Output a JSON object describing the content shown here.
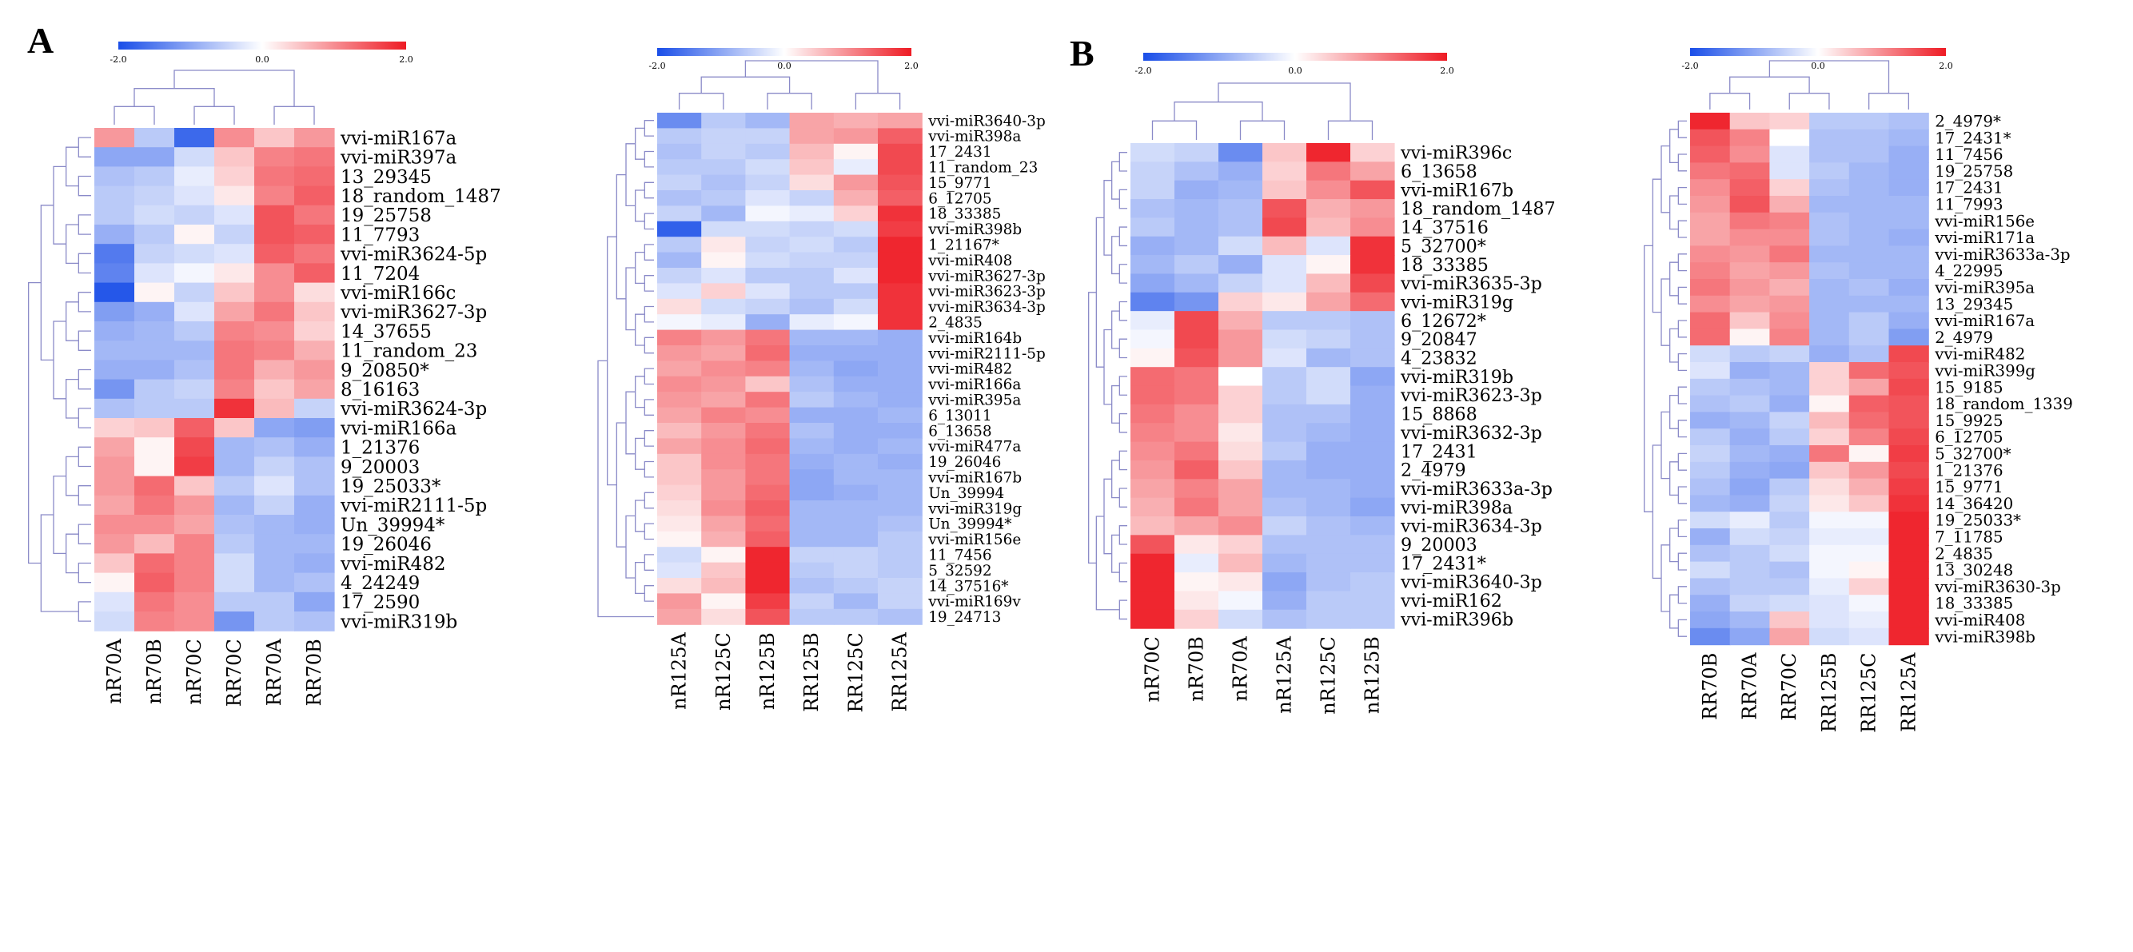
{
  "panels": [
    {
      "label": "A"
    },
    {
      "label": "B"
    }
  ],
  "chart_data": [
    {
      "type": "heatmap",
      "panel": "A",
      "title": "",
      "legend": {
        "min": "-2.0",
        "mid": "0.0",
        "max": "2.0",
        "low_color": "#1a4ee8",
        "mid_color": "#ffffff",
        "high_color": "#ee1b24"
      },
      "columns": [
        "nR70A",
        "nR70B",
        "nR70C",
        "RR70C",
        "RR70A",
        "RR70B"
      ],
      "rows": [
        "vvi-miR167a",
        "vvi-miR397a",
        "13_29345",
        "18_random_1487",
        "19_25758",
        "11_7793",
        "vvi-miR3624-5p",
        "11_7204",
        "vvi-miR166c",
        "vvi-miR3627-3p",
        "14_37655",
        "11_random_23",
        "9_20850*",
        "8_16163",
        "vvi-miR3624-3p",
        "vvi-miR166a",
        "1_21376",
        "9_20003",
        "19_25033*",
        "vvi-miR2111-5p",
        "Un_39994*",
        "19_26046",
        "vvi-miR482",
        "4_24249",
        "17_2590",
        "vvi-miR319b"
      ],
      "values": [
        [
          0.9,
          -0.6,
          -1.7,
          1.0,
          0.5,
          0.9
        ],
        [
          -1.0,
          -1.0,
          -0.4,
          0.5,
          1.1,
          1.2
        ],
        [
          -0.7,
          -0.6,
          -0.2,
          0.4,
          1.2,
          1.3
        ],
        [
          -0.6,
          -0.5,
          -0.3,
          0.2,
          1.1,
          1.4
        ],
        [
          -0.6,
          -0.4,
          -0.5,
          -0.3,
          1.5,
          1.2
        ],
        [
          -0.9,
          -0.6,
          0.1,
          -0.5,
          1.5,
          1.4
        ],
        [
          -1.5,
          -0.5,
          -0.4,
          -0.3,
          1.4,
          1.2
        ],
        [
          -1.4,
          -0.3,
          -0.1,
          0.2,
          1.0,
          1.4
        ],
        [
          -1.9,
          0.1,
          -0.5,
          0.5,
          1.0,
          0.3
        ],
        [
          -1.1,
          -0.9,
          -0.3,
          0.8,
          1.2,
          0.5
        ],
        [
          -0.9,
          -0.8,
          -0.6,
          1.1,
          1.0,
          0.4
        ],
        [
          -0.8,
          -0.8,
          -0.8,
          1.2,
          1.1,
          0.7
        ],
        [
          -0.9,
          -0.9,
          -0.7,
          1.2,
          0.7,
          0.9
        ],
        [
          -1.2,
          -0.6,
          -0.5,
          1.1,
          0.5,
          0.8
        ],
        [
          -0.7,
          -0.6,
          -0.6,
          1.8,
          0.6,
          -0.5
        ],
        [
          0.4,
          0.5,
          1.4,
          0.5,
          -1.0,
          -1.1
        ],
        [
          0.8,
          0.1,
          1.6,
          -0.8,
          -0.7,
          -0.9
        ],
        [
          0.9,
          0.1,
          1.7,
          -0.8,
          -0.5,
          -0.7
        ],
        [
          0.9,
          1.3,
          0.5,
          -0.6,
          -0.3,
          -0.7
        ],
        [
          0.8,
          1.2,
          0.9,
          -0.8,
          -0.5,
          -0.9
        ],
        [
          1.0,
          1.0,
          0.8,
          -0.7,
          -0.8,
          -0.9
        ],
        [
          0.9,
          0.6,
          1.1,
          -0.6,
          -0.8,
          -0.8
        ],
        [
          0.5,
          1.3,
          1.1,
          -0.4,
          -0.8,
          -0.9
        ],
        [
          0.1,
          1.4,
          1.1,
          -0.4,
          -0.8,
          -0.7
        ],
        [
          -0.3,
          1.2,
          1.0,
          -0.6,
          -0.6,
          -1.0
        ],
        [
          -0.4,
          1.1,
          1.0,
          -1.2,
          -0.6,
          -0.7
        ]
      ]
    },
    {
      "type": "heatmap",
      "panel": "A",
      "title": "",
      "legend": {
        "min": "-2.0",
        "mid": "0.0",
        "max": "2.0",
        "low_color": "#1a4ee8",
        "mid_color": "#ffffff",
        "high_color": "#ee1b24"
      },
      "columns": [
        "nR125A",
        "nR125C",
        "nR125B",
        "RR125B",
        "RR125C",
        "RR125A"
      ],
      "rows": [
        "vvi-miR3640-3p",
        "vvi-miR398a",
        "17_2431",
        "11_random_23",
        "15_9771",
        "6_12705",
        "18_33385",
        "vvi-miR398b",
        "1_21167*",
        "vvi-miR408",
        "vvi-miR3627-3p",
        "vvi-miR3623-3p",
        "vvi-miR3634-3p",
        "2_4835",
        "vvi-miR164b",
        "vvi-miR2111-5p",
        "vvi-miR482",
        "vvi-miR166a",
        "vvi-miR395a",
        "6_13011",
        "6_13658",
        "vvi-miR477a",
        "19_26046",
        "vvi-miR167b",
        "Un_39994",
        "vvi-miR319g",
        "Un_39994*",
        "vvi-miR156e",
        "11_7456",
        "5_32592",
        "14_37516*",
        "vvi-miR169v",
        "19_24713"
      ],
      "values": [
        [
          -1.3,
          -0.6,
          -0.8,
          0.8,
          0.7,
          0.8
        ],
        [
          -0.6,
          -0.5,
          -0.5,
          0.8,
          0.9,
          1.4
        ],
        [
          -0.7,
          -0.5,
          -0.6,
          0.6,
          0.1,
          1.6
        ],
        [
          -0.6,
          -0.6,
          -0.4,
          0.5,
          -0.2,
          1.6
        ],
        [
          -0.5,
          -0.7,
          -0.5,
          0.3,
          0.9,
          1.5
        ],
        [
          -0.7,
          -0.6,
          -0.3,
          -0.5,
          0.7,
          1.4
        ],
        [
          -0.5,
          -0.8,
          -0.1,
          -0.2,
          0.4,
          1.8
        ],
        [
          -1.8,
          -0.4,
          -0.4,
          -0.5,
          -0.4,
          1.7
        ],
        [
          -0.6,
          0.2,
          -0.5,
          -0.4,
          -0.6,
          1.9
        ],
        [
          -0.8,
          0.1,
          -0.4,
          -0.5,
          -0.5,
          1.9
        ],
        [
          -0.5,
          -0.3,
          -0.6,
          -0.6,
          -0.3,
          1.9
        ],
        [
          -0.3,
          0.4,
          -0.3,
          -0.6,
          -0.6,
          1.8
        ],
        [
          0.3,
          -0.4,
          -0.5,
          -0.7,
          -0.4,
          1.8
        ],
        [
          -0.1,
          -0.2,
          -0.9,
          -0.2,
          -0.1,
          1.8
        ],
        [
          1.1,
          0.9,
          1.2,
          -0.8,
          -0.8,
          -0.9
        ],
        [
          0.9,
          0.8,
          1.3,
          -0.9,
          -0.9,
          -0.9
        ],
        [
          0.8,
          1.0,
          1.1,
          -0.8,
          -1.0,
          -0.9
        ],
        [
          1.0,
          0.9,
          0.5,
          -0.7,
          -0.9,
          -0.9
        ],
        [
          0.9,
          0.8,
          1.2,
          -0.6,
          -0.8,
          -0.9
        ],
        [
          0.8,
          1.1,
          1.0,
          -0.9,
          -0.9,
          -0.8
        ],
        [
          0.6,
          0.9,
          1.2,
          -0.7,
          -0.9,
          -0.9
        ],
        [
          0.8,
          1.0,
          1.3,
          -0.8,
          -0.9,
          -0.8
        ],
        [
          0.5,
          1.0,
          1.2,
          -0.9,
          -0.8,
          -0.9
        ],
        [
          0.5,
          0.9,
          1.2,
          -1.0,
          -0.8,
          -0.8
        ],
        [
          0.4,
          0.9,
          1.3,
          -1.0,
          -0.9,
          -0.8
        ],
        [
          0.3,
          1.0,
          1.4,
          -0.8,
          -0.8,
          -0.8
        ],
        [
          0.2,
          0.8,
          1.3,
          -0.8,
          -0.8,
          -0.7
        ],
        [
          0.1,
          0.7,
          1.4,
          -0.8,
          -0.8,
          -0.6
        ],
        [
          -0.4,
          0.1,
          1.9,
          -0.5,
          -0.5,
          -0.6
        ],
        [
          -0.3,
          0.5,
          1.9,
          -0.6,
          -0.5,
          -0.6
        ],
        [
          0.3,
          0.6,
          1.9,
          -0.7,
          -0.6,
          -0.5
        ],
        [
          0.9,
          0.1,
          1.7,
          -0.5,
          -0.8,
          -0.5
        ],
        [
          0.8,
          0.3,
          1.5,
          -0.6,
          -0.6,
          -0.7
        ]
      ]
    },
    {
      "type": "heatmap",
      "panel": "B",
      "title": "",
      "legend": {
        "min": "-2.0",
        "mid": "0.0",
        "max": "2.0",
        "low_color": "#1a4ee8",
        "mid_color": "#ffffff",
        "high_color": "#ee1b24"
      },
      "columns": [
        "nR70C",
        "nR70B",
        "nR70A",
        "nR125A",
        "nR125C",
        "nR125B"
      ],
      "rows": [
        "vvi-miR396c",
        "6_13658",
        "vvi-miR167b",
        "18_random_1487",
        "14_37516",
        "5_32700*",
        "18_33385",
        "vvi-miR3635-3p",
        "vvi-miR319g",
        "6_12672*",
        "9_20847",
        "4_23832",
        "vvi-miR319b",
        "vvi-miR3623-3p",
        "15_8868",
        "vvi-miR3632-3p",
        "17_2431",
        "2_4979",
        "vvi-miR3633a-3p",
        "vvi-miR398a",
        "vvi-miR3634-3p",
        "9_20003",
        "17_2431*",
        "vvi-miR3640-3p",
        "vvi-miR162",
        "vvi-miR396b"
      ],
      "values": [
        [
          -0.4,
          -0.5,
          -1.3,
          0.5,
          1.9,
          0.4
        ],
        [
          -0.5,
          -0.7,
          -0.9,
          0.4,
          1.2,
          0.8
        ],
        [
          -0.5,
          -0.9,
          -0.8,
          0.5,
          1.0,
          1.5
        ],
        [
          -0.7,
          -0.8,
          -0.7,
          1.5,
          0.7,
          0.9
        ],
        [
          -0.6,
          -0.8,
          -0.7,
          1.6,
          0.6,
          1.0
        ],
        [
          -0.9,
          -0.8,
          -0.4,
          0.6,
          -0.3,
          1.8
        ],
        [
          -0.8,
          -0.6,
          -0.9,
          -0.3,
          0.1,
          1.8
        ],
        [
          -1.0,
          -0.8,
          -0.5,
          -0.3,
          0.6,
          1.6
        ],
        [
          -1.4,
          -1.2,
          0.4,
          0.2,
          0.8,
          1.3
        ],
        [
          -0.2,
          1.6,
          0.7,
          -0.6,
          -0.6,
          -0.7
        ],
        [
          -0.1,
          1.6,
          0.9,
          -0.4,
          -0.5,
          -0.7
        ],
        [
          0.1,
          1.5,
          0.9,
          -0.3,
          -0.8,
          -0.7
        ],
        [
          1.3,
          1.2,
          0.0,
          -0.6,
          -0.4,
          -1.0
        ],
        [
          1.3,
          1.2,
          0.4,
          -0.6,
          -0.4,
          -0.9
        ],
        [
          1.2,
          1.0,
          0.4,
          -0.7,
          -0.7,
          -0.9
        ],
        [
          1.1,
          1.0,
          0.2,
          -0.7,
          -0.8,
          -0.9
        ],
        [
          1.0,
          1.2,
          0.3,
          -0.6,
          -0.9,
          -0.9
        ],
        [
          0.9,
          1.4,
          0.5,
          -0.8,
          -0.9,
          -0.9
        ],
        [
          0.8,
          1.1,
          0.8,
          -0.8,
          -0.8,
          -0.9
        ],
        [
          0.7,
          1.2,
          0.8,
          -0.7,
          -0.8,
          -1.0
        ],
        [
          0.6,
          0.8,
          1.0,
          -0.5,
          -0.7,
          -0.8
        ],
        [
          1.5,
          0.2,
          0.4,
          -0.7,
          -0.7,
          -0.7
        ],
        [
          1.9,
          -0.2,
          0.6,
          -0.8,
          -0.7,
          -0.7
        ],
        [
          1.9,
          0.1,
          0.2,
          -1.0,
          -0.7,
          -0.6
        ],
        [
          1.9,
          0.2,
          -0.1,
          -0.9,
          -0.6,
          -0.6
        ],
        [
          1.9,
          0.4,
          -0.4,
          -0.7,
          -0.6,
          -0.6
        ]
      ]
    },
    {
      "type": "heatmap",
      "panel": "B",
      "title": "",
      "legend": {
        "min": "-2.0",
        "mid": "0.0",
        "max": "2.0",
        "low_color": "#1a4ee8",
        "mid_color": "#ffffff",
        "high_color": "#ee1b24"
      },
      "columns": [
        "RR70B",
        "RR70A",
        "RR70C",
        "RR125B",
        "RR125C",
        "RR125A"
      ],
      "rows": [
        "2_4979*",
        "17_2431*",
        "11_7456",
        "19_25758",
        "17_2431",
        "11_7993",
        "vvi-miR156e",
        "vvi-miR171a",
        "vvi-miR3633a-3p",
        "4_22995",
        "vvi-miR395a",
        "13_29345",
        "vvi-miR167a",
        "2_4979",
        "vvi-miR482",
        "vvi-miR399g",
        "15_9185",
        "18_random_1339",
        "15_9925",
        "6_12705",
        "5_32700*",
        "1_21376",
        "15_9771",
        "14_36420",
        "19_25033*",
        "7_11785",
        "2_4835",
        "13_30248",
        "vvi-miR3630-3p",
        "18_33385",
        "vvi-miR408",
        "vvi-miR398b"
      ],
      "values": [
        [
          1.9,
          0.5,
          0.4,
          -0.6,
          -0.6,
          -0.7
        ],
        [
          1.5,
          1.1,
          0.0,
          -0.7,
          -0.7,
          -0.8
        ],
        [
          1.4,
          1.0,
          -0.3,
          -0.7,
          -0.7,
          -0.9
        ],
        [
          1.2,
          1.3,
          -0.3,
          -0.6,
          -0.8,
          -0.9
        ],
        [
          1.0,
          1.4,
          0.4,
          -0.7,
          -0.8,
          -0.9
        ],
        [
          0.9,
          1.5,
          0.7,
          -0.8,
          -0.8,
          -0.8
        ],
        [
          0.8,
          1.2,
          1.1,
          -0.7,
          -0.8,
          -0.8
        ],
        [
          0.8,
          1.0,
          1.0,
          -0.7,
          -0.8,
          -0.9
        ],
        [
          1.0,
          0.9,
          1.2,
          -0.8,
          -0.8,
          -0.8
        ],
        [
          1.1,
          0.8,
          0.9,
          -0.7,
          -0.8,
          -0.8
        ],
        [
          1.2,
          0.9,
          0.7,
          -0.8,
          -0.7,
          -0.9
        ],
        [
          1.0,
          0.8,
          0.9,
          -0.8,
          -0.8,
          -0.8
        ],
        [
          1.3,
          0.5,
          1.0,
          -0.8,
          -0.6,
          -0.9
        ],
        [
          1.3,
          0.1,
          1.1,
          -0.8,
          -0.6,
          -1.1
        ],
        [
          -0.4,
          -0.6,
          -0.5,
          -0.9,
          -0.7,
          1.6
        ],
        [
          -0.3,
          -0.9,
          -0.8,
          0.4,
          1.3,
          1.5
        ],
        [
          -0.6,
          -0.7,
          -0.8,
          0.4,
          0.8,
          1.6
        ],
        [
          -0.7,
          -0.6,
          -0.9,
          0.1,
          1.4,
          1.5
        ],
        [
          -0.9,
          -0.8,
          -0.5,
          0.6,
          1.3,
          1.5
        ],
        [
          -0.6,
          -0.9,
          -0.6,
          0.4,
          1.1,
          1.6
        ],
        [
          -0.5,
          -0.8,
          -0.9,
          1.2,
          0.1,
          1.7
        ],
        [
          -0.6,
          -0.9,
          -1.0,
          0.5,
          0.9,
          1.6
        ],
        [
          -0.7,
          -1.0,
          -0.6,
          0.3,
          0.7,
          1.7
        ],
        [
          -0.8,
          -0.9,
          -0.5,
          0.2,
          0.5,
          1.8
        ],
        [
          -0.4,
          -0.2,
          -0.6,
          -0.1,
          -0.1,
          1.9
        ],
        [
          -0.9,
          -0.4,
          -0.5,
          -0.2,
          -0.2,
          1.9
        ],
        [
          -0.7,
          -0.6,
          -0.4,
          -0.1,
          -0.1,
          1.9
        ],
        [
          -0.4,
          -0.6,
          -0.7,
          -0.1,
          0.1,
          1.9
        ],
        [
          -0.7,
          -0.6,
          -0.6,
          -0.2,
          0.4,
          1.9
        ],
        [
          -0.9,
          -0.5,
          -0.4,
          -0.3,
          -0.1,
          1.9
        ],
        [
          -1.0,
          -0.8,
          0.5,
          -0.3,
          -0.2,
          1.9
        ],
        [
          -1.3,
          -1.0,
          0.8,
          -0.4,
          -0.3,
          1.9
        ]
      ]
    }
  ]
}
